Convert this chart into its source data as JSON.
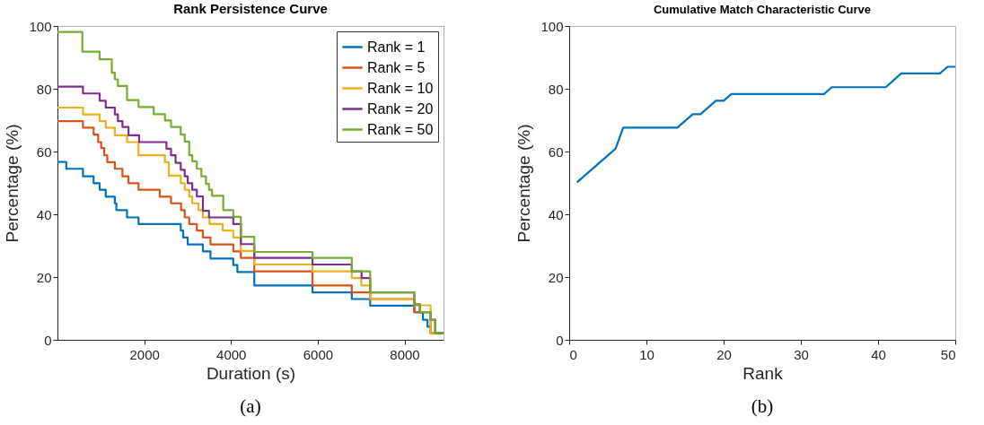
{
  "chart_data": [
    {
      "type": "step",
      "title": "Rank Persistence Curve",
      "xlabel": "Duration (s)",
      "ylabel": "Percentage (%)",
      "xlim": [
        0,
        8900
      ],
      "xticks": [
        2000,
        4000,
        6000,
        8000
      ],
      "ylim": [
        0,
        100
      ],
      "yticks": [
        0,
        20,
        40,
        60,
        80,
        100
      ],
      "grid": false,
      "legend": "top right",
      "annotations": [
        "(a)"
      ],
      "series": [
        {
          "name": "Rank = 1",
          "color": "#0072bd",
          "x": [
            0,
            203,
            588,
            833,
            973,
            1113,
            1323,
            1358,
            1603,
            1869,
            2842,
            2898,
            3003,
            3353,
            3528,
            4053,
            4148,
            4537,
            5880,
            6785,
            7209,
            8227,
            8425,
            8531,
            8602,
            8900
          ],
          "values": [
            56.7,
            54.5,
            52.1,
            49.9,
            47.8,
            45.6,
            43.5,
            41.3,
            39,
            36.9,
            34.8,
            32.6,
            30.4,
            28.2,
            25.9,
            23.8,
            21.6,
            17.3,
            15.1,
            13,
            10.9,
            8.8,
            6.4,
            4.2,
            2.1,
            2.1
          ]
        },
        {
          "name": "Rank = 5",
          "color": "#d95319",
          "x": [
            0,
            588,
            833,
            938,
            1008,
            1078,
            1148,
            1323,
            1498,
            1638,
            1869,
            2359,
            2618,
            2849,
            2933,
            3038,
            3213,
            3353,
            3528,
            4053,
            4228,
            4537,
            5880,
            6785,
            7209,
            8227,
            8602,
            8900
          ],
          "values": [
            69.7,
            67.6,
            65.4,
            63,
            61.1,
            58.8,
            56.6,
            54.5,
            52.1,
            49.9,
            47.8,
            45.6,
            43.5,
            41.3,
            39,
            36.9,
            34.8,
            32.6,
            30.4,
            28.2,
            26.1,
            21.8,
            17.3,
            15.1,
            13,
            8.8,
            2.1,
            2.1
          ]
        },
        {
          "name": "Rank = 10",
          "color": "#edb120",
          "x": [
            0,
            588,
            973,
            1113,
            1323,
            1603,
            1869,
            2478,
            2569,
            2842,
            2933,
            3038,
            3108,
            3248,
            3353,
            3507,
            3808,
            4053,
            4228,
            4537,
            5880,
            6785,
            7004,
            7209,
            8227,
            8602,
            8900
          ],
          "values": [
            74,
            71.8,
            69.7,
            67.6,
            65.2,
            63,
            58.8,
            56.6,
            52.3,
            49.9,
            47.8,
            45.6,
            43.5,
            41.3,
            39,
            36.9,
            34.8,
            32.6,
            28.3,
            24,
            21.8,
            19.7,
            17.3,
            13,
            11,
            2.1,
            2.1
          ]
        },
        {
          "name": "Rank = 20",
          "color": "#7e2f8e",
          "x": [
            0,
            588,
            973,
            1113,
            1323,
            1393,
            1498,
            1638,
            1883,
            2513,
            2618,
            2723,
            2842,
            2933,
            3003,
            3108,
            3213,
            3353,
            3493,
            4053,
            4228,
            4537,
            5880,
            6785,
            7011,
            7209,
            8227,
            8354,
            8602,
            8708,
            8900
          ],
          "values": [
            80.7,
            78.5,
            76.2,
            74,
            71.8,
            69.7,
            67.8,
            65.2,
            63,
            60.9,
            58.8,
            56.4,
            54.2,
            52.1,
            49.9,
            47.8,
            45.7,
            41.1,
            39,
            36.9,
            30.5,
            26.1,
            24,
            21.8,
            19.7,
            15.1,
            11.3,
            8.8,
            6.4,
            2.1,
            2.1
          ]
        },
        {
          "name": "Rank = 50",
          "color": "#77ac30",
          "x": [
            0,
            574,
            973,
            1253,
            1323,
            1393,
            1603,
            1869,
            2219,
            2478,
            2618,
            2842,
            2933,
            3038,
            3108,
            3213,
            3318,
            3423,
            3493,
            3563,
            3822,
            4053,
            4228,
            4537,
            5880,
            6785,
            7209,
            8227,
            8354,
            8602,
            8708,
            8900
          ],
          "values": [
            98.1,
            91.8,
            89.4,
            85.1,
            83,
            80.9,
            76.4,
            74.2,
            71.9,
            69.9,
            67.8,
            65.4,
            63.2,
            58.8,
            56.9,
            54.5,
            52.1,
            49.7,
            47.8,
            45.9,
            41.3,
            39.2,
            32.8,
            28,
            26.1,
            21.8,
            15.1,
            11.3,
            8.8,
            6.4,
            2.1,
            2.1
          ]
        }
      ]
    },
    {
      "type": "line",
      "title": "Cumulative Match Characteristic Curve",
      "xlabel": "Rank",
      "ylabel": "Percentage (%)",
      "xlim": [
        0,
        50
      ],
      "xticks": [
        0,
        10,
        20,
        30,
        40,
        50
      ],
      "ylim": [
        0,
        100
      ],
      "yticks": [
        0,
        20,
        40,
        60,
        80,
        100
      ],
      "grid": false,
      "annotations": [
        "(b)"
      ],
      "series": [
        {
          "color": "#0072bd",
          "x": [
            1,
            6,
            7,
            14,
            16,
            17,
            19,
            20,
            21,
            33,
            34,
            41,
            43,
            48,
            49,
            50
          ],
          "values": [
            50.2,
            60.9,
            67.6,
            67.6,
            71.9,
            71.9,
            76.2,
            76.2,
            78.3,
            78.3,
            80.5,
            80.5,
            84.9,
            84.9,
            87,
            87
          ]
        }
      ]
    }
  ]
}
